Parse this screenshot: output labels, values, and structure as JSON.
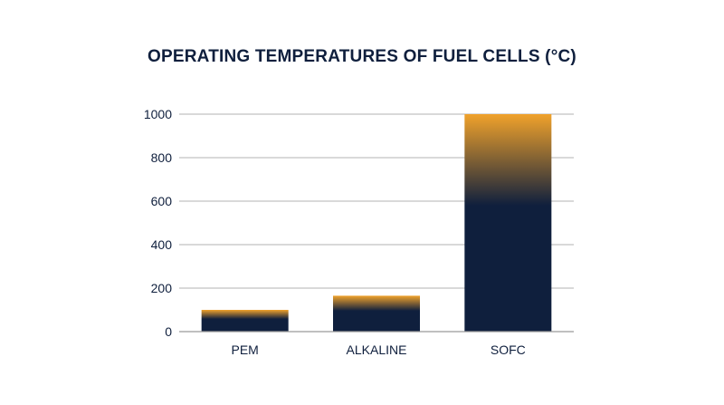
{
  "chart_data": {
    "type": "bar",
    "title": "OPERATING TEMPERATURES OF FUEL CELLS (°C)",
    "xlabel": "",
    "ylabel": "",
    "categories": [
      "PEM",
      "ALKALINE",
      "SOFC"
    ],
    "values": [
      100,
      165,
      1000
    ],
    "ylim": [
      0,
      1000
    ],
    "yticks": [
      0,
      200,
      400,
      600,
      800,
      1000
    ],
    "grid": true,
    "legend": "none",
    "colors": {
      "bar_top": "#f0a22b",
      "bar_bottom": "#0f1f3d",
      "grid": "#9a9a9a",
      "text": "#0f1f3d"
    }
  }
}
